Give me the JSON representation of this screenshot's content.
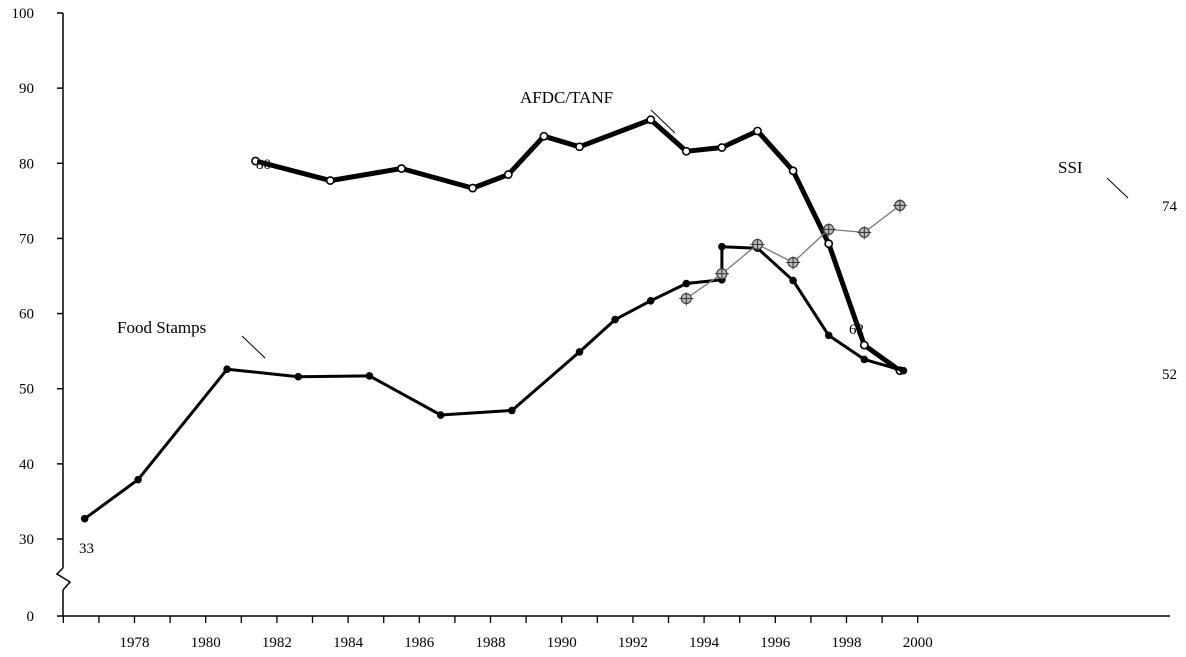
{
  "chart_data": {
    "type": "line",
    "title": "",
    "xlabel": "",
    "ylabel": "",
    "xlim": [
      1975.9,
      2000.5
    ],
    "ylim": [
      0,
      100
    ],
    "y_axis_break": "broken between 0 and 30",
    "y_ticks": [
      "0",
      "30",
      "40",
      "50",
      "60",
      "70",
      "80",
      "90",
      "100"
    ],
    "x_ticks": [
      "1978",
      "1980",
      "1982",
      "1984",
      "1986",
      "1988",
      "1990",
      "1992",
      "1994",
      "1996",
      "1998",
      "2000"
    ],
    "grid": false,
    "legend": "none (series labeled directly on lines)",
    "series": [
      {
        "name": "AFDC/TANF",
        "color": "#000000",
        "marker": "open-circle",
        "x": [
          1981.4,
          1983.5,
          1985.5,
          1987.5,
          1988.5,
          1989.5,
          1990.5,
          1992.5,
          1993.5,
          1994.5,
          1995.5,
          1996.5,
          1997.5,
          1998.5,
          1999.5
        ],
        "y": [
          80.3,
          77.7,
          79.3,
          76.7,
          78.5,
          83.6,
          82.2,
          85.8,
          81.6,
          82.1,
          84.3,
          79.0,
          69.3,
          55.8,
          52.4
        ]
      },
      {
        "name": "Food Stamps",
        "color": "#000000",
        "marker": "filled-circle",
        "x": [
          1976.6,
          1978.1,
          1980.6,
          1982.6,
          1984.6,
          1986.6,
          1988.6,
          1990.5,
          1991.5,
          1992.5,
          1993.5,
          1994.5,
          1994.5,
          1995.5,
          1996.5,
          1997.5,
          1998.5,
          1999.6
        ],
        "y": [
          32.7,
          37.9,
          52.6,
          51.6,
          51.7,
          46.5,
          47.1,
          54.9,
          59.2,
          61.7,
          64.0,
          64.5,
          68.9,
          68.7,
          64.4,
          57.1,
          53.9,
          52.4
        ]
      },
      {
        "name": "SSI",
        "color": "#777777",
        "marker": "circle-plus",
        "x": [
          1993.5,
          1994.5,
          1995.5,
          1996.5,
          1997.5,
          1998.5,
          1999.5
        ],
        "y": [
          62.0,
          65.3,
          69.2,
          66.8,
          71.2,
          70.8,
          74.4
        ]
      }
    ],
    "annotations": [
      {
        "text": "80"
      },
      {
        "text": "33"
      },
      {
        "text": "62"
      },
      {
        "text": "74"
      },
      {
        "text": "52"
      }
    ]
  }
}
